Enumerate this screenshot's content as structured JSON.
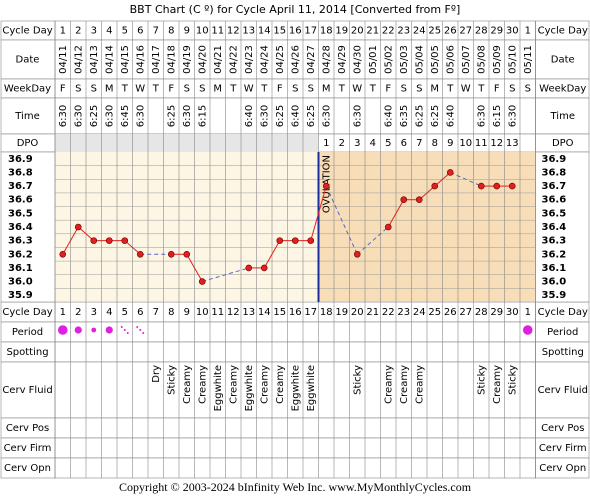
{
  "title": "BBT Chart (C º) for Cycle April 11, 2014  [Converted from Fº]",
  "footer": "Copyright © 2003-2024 bInfinity Web Inc.    www.MyMonthlyCycles.com",
  "rows": [
    "Cycle Day",
    "Date",
    "WeekDay",
    "Time",
    "DPO",
    "Cycle Day",
    "Period",
    "Spotting",
    "Cerv Fluid",
    "Cerv Pos",
    "Cerv Firm",
    "Cerv Opn"
  ],
  "chart_data": {
    "type": "line",
    "categories": [
      1,
      2,
      3,
      4,
      5,
      6,
      7,
      8,
      9,
      10,
      11,
      12,
      13,
      14,
      15,
      16,
      17,
      18,
      19,
      20,
      21,
      22,
      23,
      24,
      25,
      26,
      27,
      28,
      29,
      30,
      1
    ],
    "dates": [
      "04/11",
      "04/12",
      "04/13",
      "04/14",
      "04/15",
      "04/16",
      "04/17",
      "04/18",
      "04/19",
      "04/20",
      "04/21",
      "04/22",
      "04/23",
      "04/24",
      "04/25",
      "04/26",
      "04/27",
      "04/28",
      "04/29",
      "04/30",
      "05/01",
      "05/02",
      "05/03",
      "05/04",
      "05/05",
      "05/06",
      "05/07",
      "05/08",
      "05/09",
      "05/10",
      "05/11"
    ],
    "weekdays": [
      "F",
      "S",
      "S",
      "M",
      "T",
      "W",
      "T",
      "F",
      "S",
      "S",
      "M",
      "T",
      "W",
      "T",
      "F",
      "S",
      "S",
      "M",
      "T",
      "W",
      "T",
      "F",
      "S",
      "S",
      "M",
      "T",
      "W",
      "T",
      "F",
      "S",
      "S"
    ],
    "times": [
      "6:30",
      "6:30",
      "6:25",
      "6:30",
      "6:45",
      "6:30",
      null,
      "6:25",
      "6:30",
      "6:15",
      null,
      null,
      "6:40",
      "6:30",
      "6:25",
      "6:40",
      "6:25",
      "6:30",
      null,
      "6:30",
      null,
      "6:40",
      "6:35",
      "6:25",
      "6:25",
      "6:40",
      null,
      "6:30",
      "6:15",
      "6:30",
      null
    ],
    "dpo": [
      null,
      null,
      null,
      null,
      null,
      null,
      null,
      null,
      null,
      null,
      null,
      null,
      null,
      null,
      null,
      null,
      null,
      1,
      2,
      3,
      4,
      5,
      6,
      7,
      8,
      9,
      10,
      11,
      12,
      13,
      null
    ],
    "series": [
      {
        "name": "Temperature",
        "color": "#e02020",
        "values": [
          36.2,
          36.4,
          36.3,
          36.3,
          36.3,
          36.2,
          null,
          36.2,
          36.2,
          36.0,
          null,
          null,
          36.1,
          36.1,
          36.3,
          36.3,
          36.3,
          36.7,
          null,
          36.2,
          null,
          36.4,
          36.6,
          36.6,
          36.7,
          36.8,
          null,
          36.7,
          36.7,
          36.7,
          null
        ]
      }
    ],
    "ylim": [
      35.85,
      36.95
    ],
    "yticks": [
      36.9,
      36.8,
      36.7,
      36.6,
      36.5,
      36.4,
      36.3,
      36.2,
      36.1,
      {
        "value": 36,
        "label": "36.0"
      },
      35.9
    ],
    "ovulation_label": "OVULATION",
    "period": [
      4,
      3,
      2,
      3,
      1,
      1,
      null,
      null,
      null,
      null,
      null,
      null,
      null,
      null,
      null,
      null,
      null,
      null,
      null,
      null,
      null,
      null,
      null,
      null,
      null,
      null,
      null,
      null,
      null,
      null,
      4
    ],
    "cerv_fluid": [
      null,
      null,
      null,
      null,
      null,
      null,
      "Dry",
      "Sticky",
      "Creamy",
      "Creamy",
      "Eggwhite",
      "Creamy",
      "Eggwhite",
      "Creamy",
      "Creamy",
      "Eggwhite",
      "Eggwhite",
      null,
      null,
      "Sticky",
      null,
      "Creamy",
      "Creamy",
      "Creamy",
      null,
      null,
      null,
      "Sticky",
      "Creamy",
      "Sticky",
      null
    ]
  }
}
